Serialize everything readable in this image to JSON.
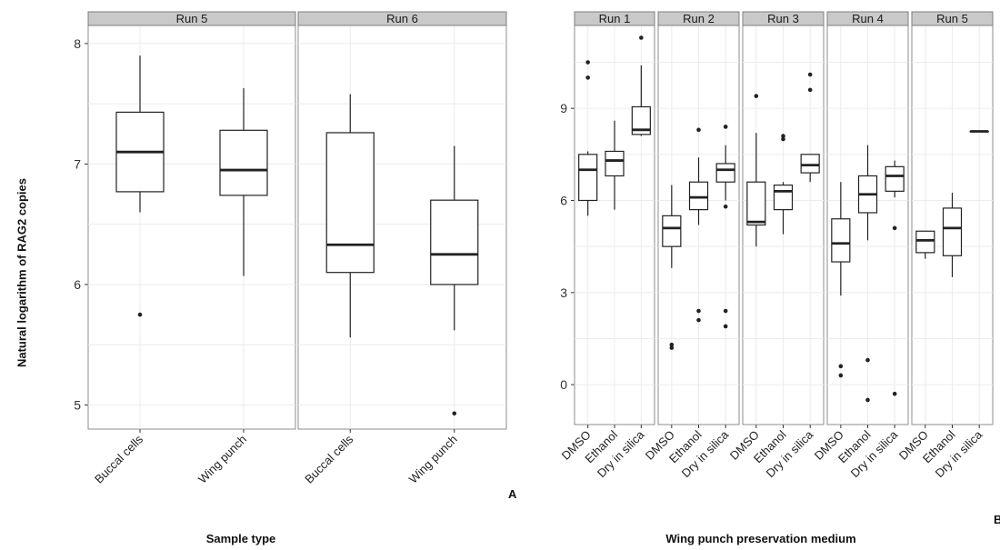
{
  "y_axis_label": "Natural logarithm of RAG2 copies",
  "chart_data": [
    {
      "type": "box",
      "panel_label": "A",
      "xlabel": "Sample type",
      "ylabel": "Natural logarithm of RAG2 copies",
      "ylim": [
        4.8,
        8.15
      ],
      "yticks": [
        5,
        6,
        7,
        8
      ],
      "grid": true,
      "facets": [
        {
          "title": "Run 5",
          "categories": [
            "Buccal cells",
            "Wing punch"
          ],
          "boxes": [
            {
              "min": 6.6,
              "q1": 6.77,
              "median": 7.1,
              "q3": 7.43,
              "max": 7.9,
              "outliers": [
                5.75
              ]
            },
            {
              "min": 6.07,
              "q1": 6.74,
              "median": 6.95,
              "q3": 7.28,
              "max": 7.63,
              "outliers": []
            }
          ]
        },
        {
          "title": "Run 6",
          "categories": [
            "Buccal cells",
            "Wing punch"
          ],
          "boxes": [
            {
              "min": 5.56,
              "q1": 6.1,
              "median": 6.33,
              "q3": 7.26,
              "max": 7.58,
              "outliers": []
            },
            {
              "min": 5.62,
              "q1": 6.0,
              "median": 6.25,
              "q3": 6.7,
              "max": 7.15,
              "outliers": [
                4.93
              ]
            }
          ]
        }
      ]
    },
    {
      "type": "box",
      "panel_label": "B",
      "xlabel": "Wing punch preservation medium",
      "ylabel": "",
      "ylim": [
        -1.3,
        11.7
      ],
      "yticks": [
        0,
        3,
        6,
        9
      ],
      "grid": true,
      "facets": [
        {
          "title": "Run 1",
          "categories": [
            "DMSO",
            "Ethanol",
            "Dry in silica"
          ],
          "boxes": [
            {
              "min": 5.5,
              "q1": 6.0,
              "median": 7.0,
              "q3": 7.5,
              "max": 7.6,
              "outliers": [
                10.0,
                10.5
              ]
            },
            {
              "min": 5.7,
              "q1": 6.8,
              "median": 7.3,
              "q3": 7.6,
              "max": 8.6,
              "outliers": []
            },
            {
              "min": 8.1,
              "q1": 8.15,
              "median": 8.3,
              "q3": 9.05,
              "max": 10.4,
              "outliers": [
                11.3
              ]
            }
          ]
        },
        {
          "title": "Run 2",
          "categories": [
            "DMSO",
            "Ethanol",
            "Dry in silica"
          ],
          "boxes": [
            {
              "min": 3.8,
              "q1": 4.5,
              "median": 5.1,
              "q3": 5.5,
              "max": 6.5,
              "outliers": [
                1.2,
                1.3
              ]
            },
            {
              "min": 5.2,
              "q1": 5.7,
              "median": 6.1,
              "q3": 6.6,
              "max": 7.4,
              "outliers": [
                8.3,
                2.1,
                2.4
              ]
            },
            {
              "min": 6.0,
              "q1": 6.6,
              "median": 7.0,
              "q3": 7.2,
              "max": 7.8,
              "outliers": [
                8.4,
                5.8,
                2.4,
                1.9
              ]
            }
          ]
        },
        {
          "title": "Run 3",
          "categories": [
            "DMSO",
            "Ethanol",
            "Dry in silica"
          ],
          "boxes": [
            {
              "min": 4.5,
              "q1": 5.2,
              "median": 5.3,
              "q3": 6.6,
              "max": 8.2,
              "outliers": [
                9.4
              ]
            },
            {
              "min": 4.9,
              "q1": 5.7,
              "median": 6.3,
              "q3": 6.5,
              "max": 6.6,
              "outliers": [
                8.0,
                8.1
              ]
            },
            {
              "min": 6.6,
              "q1": 6.9,
              "median": 7.15,
              "q3": 7.5,
              "max": 7.5,
              "outliers": [
                9.6,
                10.1
              ]
            }
          ]
        },
        {
          "title": "Run 4",
          "categories": [
            "DMSO",
            "Ethanol",
            "Dry in silica"
          ],
          "boxes": [
            {
              "min": 2.9,
              "q1": 4.0,
              "median": 4.6,
              "q3": 5.4,
              "max": 6.6,
              "outliers": [
                0.6,
                0.3
              ]
            },
            {
              "min": 4.7,
              "q1": 5.6,
              "median": 6.2,
              "q3": 6.8,
              "max": 7.8,
              "outliers": [
                0.8,
                -0.5
              ]
            },
            {
              "min": 6.1,
              "q1": 6.3,
              "median": 6.8,
              "q3": 7.1,
              "max": 7.3,
              "outliers": [
                5.1,
                -0.3
              ]
            }
          ]
        },
        {
          "title": "Run 5",
          "categories": [
            "DMSO",
            "Ethanol",
            "Dry in silica"
          ],
          "boxes": [
            {
              "min": 4.1,
              "q1": 4.3,
              "median": 4.7,
              "q3": 5.0,
              "max": 5.0,
              "outliers": []
            },
            {
              "min": 3.5,
              "q1": 4.2,
              "median": 5.1,
              "q3": 5.75,
              "max": 6.25,
              "outliers": []
            },
            {
              "min": 8.25,
              "q1": 8.25,
              "median": 8.25,
              "q3": 8.25,
              "max": 8.25,
              "outliers": []
            }
          ]
        }
      ]
    }
  ]
}
